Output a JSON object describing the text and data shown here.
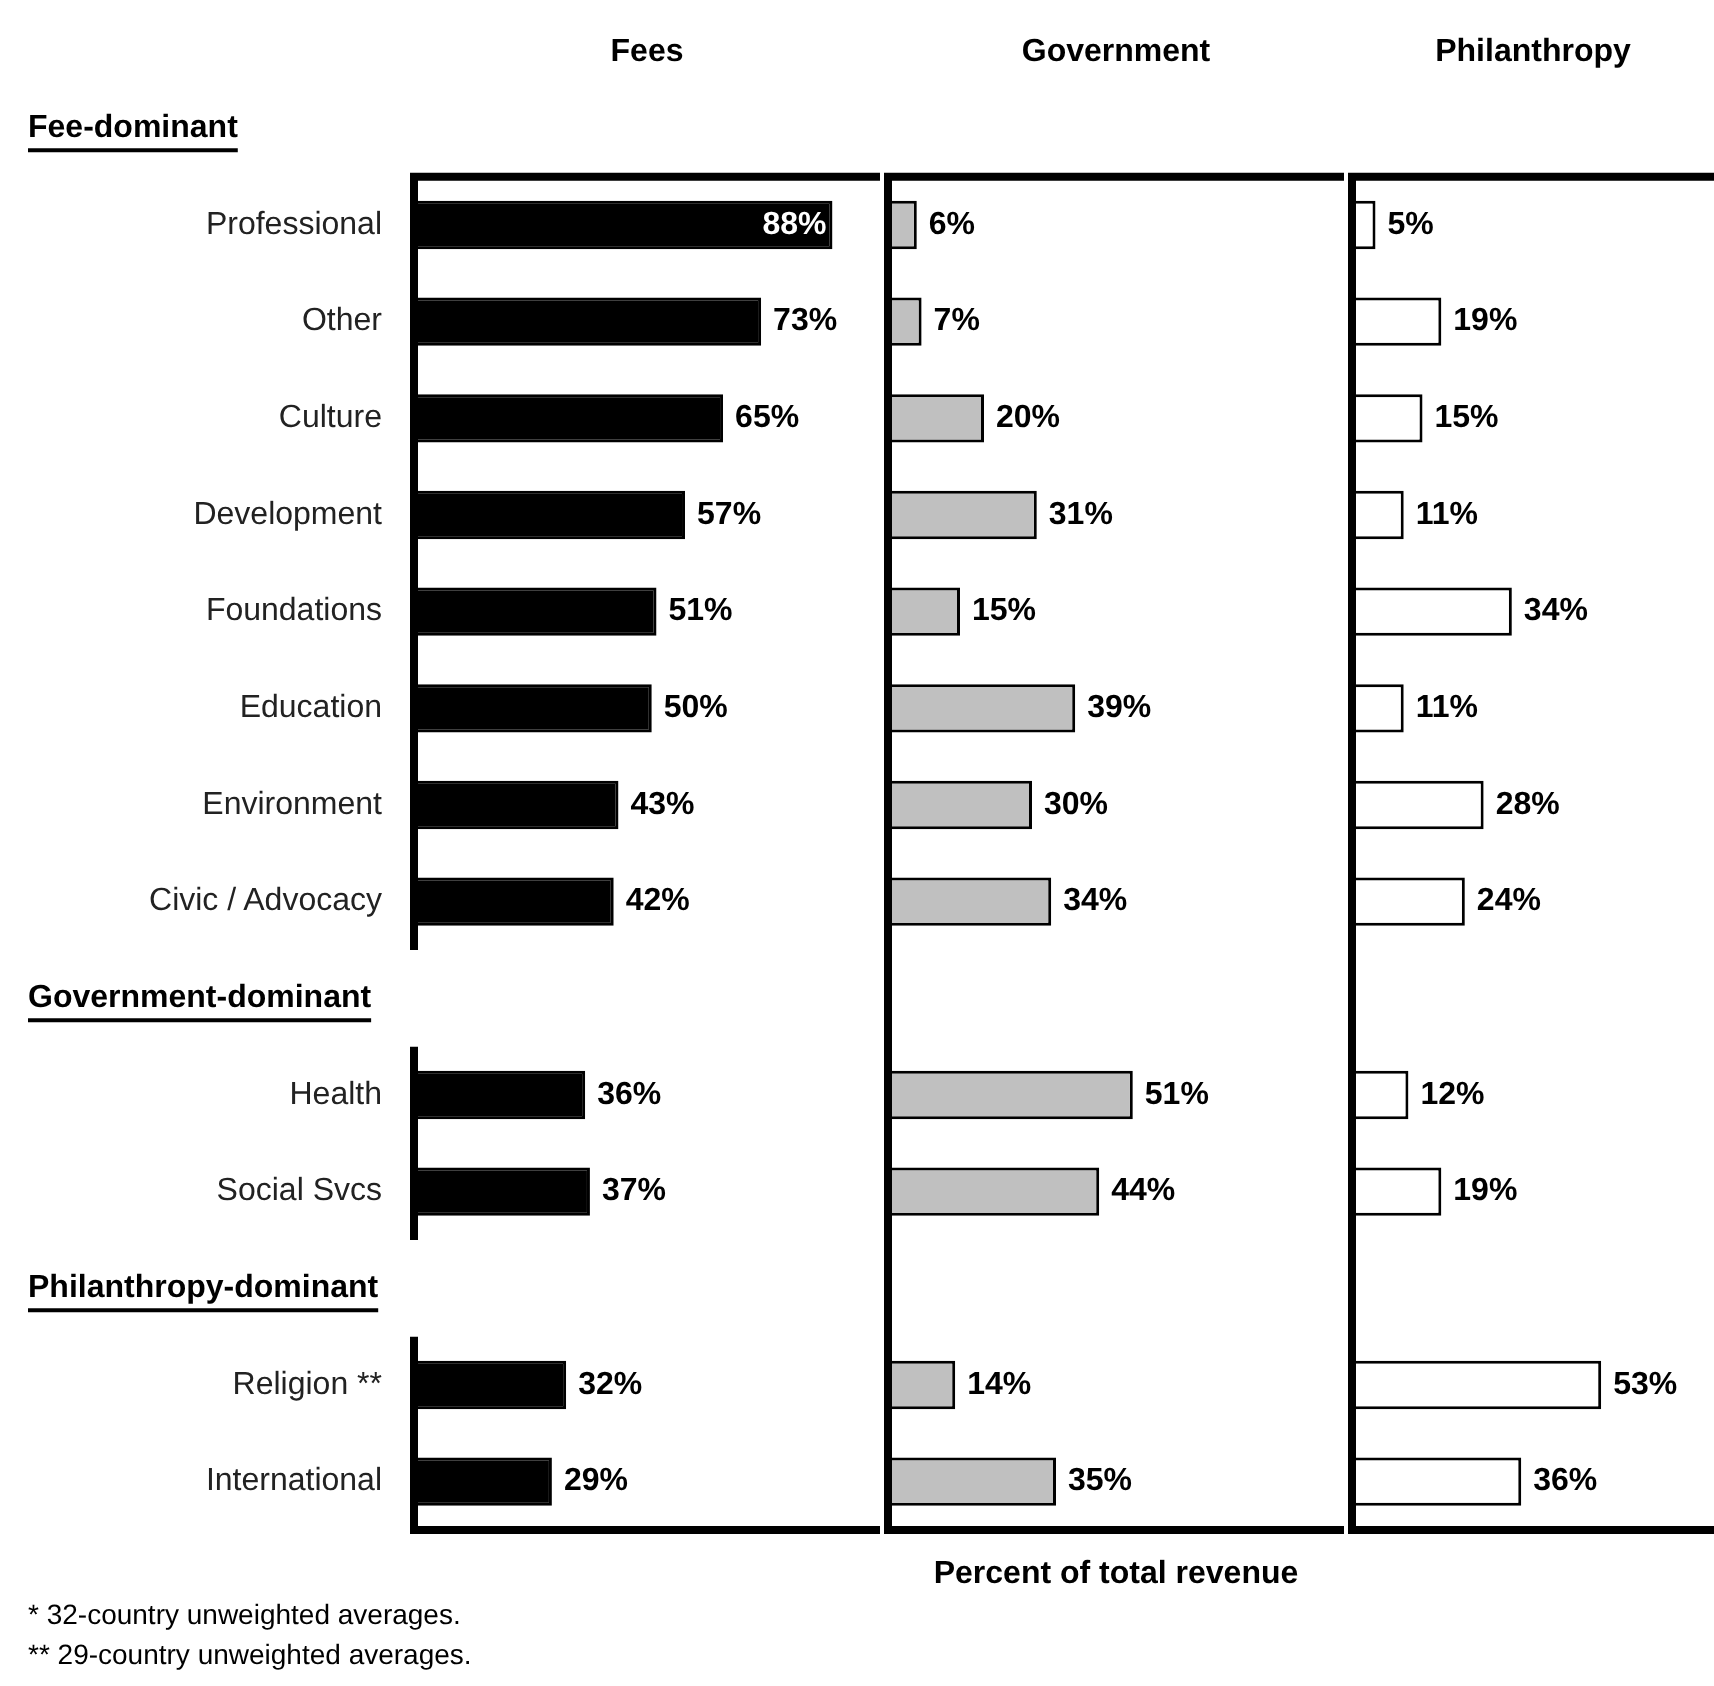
{
  "chart_data": [
    {
      "type": "bar",
      "orientation": "horizontal",
      "title": "Fees",
      "tick_labels": "y",
      "color": "#000000",
      "categories": [
        null,
        "Professional",
        "Other",
        "Culture",
        "Development",
        "Foundations",
        "Education",
        "Environment",
        "Civic / Advocacy",
        null,
        "Health",
        "Social Svcs",
        null,
        "Religion **",
        "International"
      ],
      "values": [
        null,
        88,
        73,
        65,
        57,
        51,
        50,
        43,
        42,
        null,
        36,
        37,
        null,
        32,
        29
      ],
      "value_labels": [
        null,
        "88%",
        "73%",
        "65%",
        "57%",
        "51%",
        "50%",
        "43%",
        "42%",
        null,
        "36%",
        "37%",
        null,
        "32%",
        "29%"
      ],
      "xlim": [
        0,
        98
      ],
      "annotations": [
        "Fee-dominant",
        "Government-dominant",
        "Philanthropy-dominant",
        "* 32-country unweighted averages.",
        "** 29-country unweighted averages."
      ]
    },
    {
      "type": "bar",
      "orientation": "horizontal",
      "title": "Government",
      "tick_labels": false,
      "color": "#c0c0c0",
      "xlabel": "Percent of total revenue",
      "values": [
        null,
        6,
        7,
        20,
        31,
        15,
        39,
        30,
        34,
        null,
        51,
        44,
        null,
        14,
        35
      ],
      "value_labels": [
        null,
        "6%",
        "7%",
        "20%",
        "31%",
        "15%",
        "39%",
        "30%",
        "34%",
        null,
        "51%",
        "44%",
        null,
        "14%",
        "35%"
      ],
      "xlim": [
        0,
        95
      ]
    },
    {
      "type": "bar",
      "orientation": "horizontal",
      "title": "Philanthropy",
      "tick_labels": false,
      "color": "#ffffff",
      "values": [
        null,
        5,
        19,
        15,
        11,
        34,
        11,
        28,
        24,
        null,
        12,
        19,
        null,
        53,
        36
      ],
      "value_labels": [
        null,
        "5%",
        "19%",
        "15%",
        "11%",
        "34%",
        "11%",
        "28%",
        "24%",
        null,
        "12%",
        "19%",
        null,
        "53%",
        "36%"
      ],
      "xlim": [
        0,
        77
      ]
    }
  ]
}
